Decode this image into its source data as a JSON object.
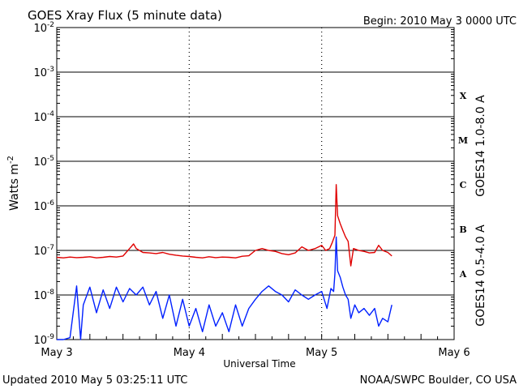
{
  "header": {
    "title": "GOES Xray Flux (5 minute data)",
    "begin": "Begin:  2010 May 3 0000 UTC"
  },
  "footer": {
    "updated": "Updated 2010 May  5 03:25:11 UTC",
    "credit": "NOAA/SWPC Boulder, CO USA"
  },
  "chart_data": {
    "type": "line",
    "title": "GOES Xray Flux (5 minute data)",
    "xlabel": "Universal Time",
    "ylabel": "Watts m",
    "ylabel_sup": "-2",
    "yscale": "log",
    "ylim": [
      1e-09,
      0.01
    ],
    "xlim_days": [
      0,
      3
    ],
    "x_ticks": [
      "May 3",
      "May 4",
      "May 5",
      "May 6"
    ],
    "y_ticks": [
      {
        "base": "10",
        "exp": "-2",
        "value": 0.01
      },
      {
        "base": "10",
        "exp": "-3",
        "value": 0.001
      },
      {
        "base": "10",
        "exp": "-4",
        "value": 0.0001
      },
      {
        "base": "10",
        "exp": "-5",
        "value": 1e-05
      },
      {
        "base": "10",
        "exp": "-6",
        "value": 1e-06
      },
      {
        "base": "10",
        "exp": "-7",
        "value": 1e-07
      },
      {
        "base": "10",
        "exp": "-8",
        "value": 1e-08
      },
      {
        "base": "10",
        "exp": "-9",
        "value": 1e-09
      }
    ],
    "flare_classes": [
      {
        "label": "X",
        "value": 0.0003
      },
      {
        "label": "M",
        "value": 3e-05
      },
      {
        "label": "C",
        "value": 3e-06
      },
      {
        "label": "B",
        "value": 3e-07
      },
      {
        "label": "A",
        "value": 3e-08
      }
    ],
    "grid": true,
    "series": [
      {
        "name": "GOES14 1.0-8.0 A",
        "color": "#e00000",
        "points": [
          [
            0.0,
            7e-08
          ],
          [
            0.05,
            6.8e-08
          ],
          [
            0.1,
            7.1e-08
          ],
          [
            0.15,
            6.9e-08
          ],
          [
            0.2,
            7e-08
          ],
          [
            0.25,
            7.2e-08
          ],
          [
            0.3,
            6.8e-08
          ],
          [
            0.35,
            7e-08
          ],
          [
            0.4,
            7.3e-08
          ],
          [
            0.45,
            7.1e-08
          ],
          [
            0.5,
            7.5e-08
          ],
          [
            0.55,
            1.1e-07
          ],
          [
            0.58,
            1.4e-07
          ],
          [
            0.6,
            1.1e-07
          ],
          [
            0.65,
            9e-08
          ],
          [
            0.7,
            8.8e-08
          ],
          [
            0.75,
            8.5e-08
          ],
          [
            0.8,
            9e-08
          ],
          [
            0.85,
            8.2e-08
          ],
          [
            0.9,
            7.8e-08
          ],
          [
            0.95,
            7.5e-08
          ],
          [
            1.0,
            7.3e-08
          ],
          [
            1.05,
            7e-08
          ],
          [
            1.1,
            6.8e-08
          ],
          [
            1.15,
            7.2e-08
          ],
          [
            1.2,
            6.9e-08
          ],
          [
            1.25,
            7.1e-08
          ],
          [
            1.3,
            7e-08
          ],
          [
            1.35,
            6.8e-08
          ],
          [
            1.4,
            7.4e-08
          ],
          [
            1.45,
            7.6e-08
          ],
          [
            1.5,
            1e-07
          ],
          [
            1.55,
            1.1e-07
          ],
          [
            1.6,
            1e-07
          ],
          [
            1.65,
            9.5e-08
          ],
          [
            1.7,
            8.5e-08
          ],
          [
            1.75,
            8e-08
          ],
          [
            1.8,
            8.8e-08
          ],
          [
            1.85,
            1.2e-07
          ],
          [
            1.9,
            1e-07
          ],
          [
            1.95,
            1.1e-07
          ],
          [
            2.0,
            1.3e-07
          ],
          [
            2.03,
            1e-07
          ],
          [
            2.06,
            1.1e-07
          ],
          [
            2.08,
            1.5e-07
          ],
          [
            2.1,
            2.2e-07
          ],
          [
            2.11,
            3e-06
          ],
          [
            2.12,
            6e-07
          ],
          [
            2.14,
            4e-07
          ],
          [
            2.16,
            2.8e-07
          ],
          [
            2.18,
            2e-07
          ],
          [
            2.2,
            1.6e-07
          ],
          [
            2.22,
            4.5e-08
          ],
          [
            2.24,
            1.1e-07
          ],
          [
            2.28,
            1e-07
          ],
          [
            2.32,
            9.5e-08
          ],
          [
            2.36,
            8.8e-08
          ],
          [
            2.4,
            9e-08
          ],
          [
            2.43,
            1.3e-07
          ],
          [
            2.46,
            1e-07
          ],
          [
            2.5,
            9e-08
          ],
          [
            2.53,
            7.5e-08
          ]
        ]
      },
      {
        "name": "GOES14 0.5-4.0 A",
        "color": "#0020ff",
        "points": [
          [
            0.0,
            1e-09
          ],
          [
            0.05,
            1e-09
          ],
          [
            0.1,
            1.1e-09
          ],
          [
            0.15,
            1.6e-08
          ],
          [
            0.18,
            1e-09
          ],
          [
            0.2,
            6e-09
          ],
          [
            0.25,
            1.5e-08
          ],
          [
            0.3,
            4e-09
          ],
          [
            0.35,
            1.3e-08
          ],
          [
            0.4,
            5e-09
          ],
          [
            0.45,
            1.5e-08
          ],
          [
            0.5,
            7e-09
          ],
          [
            0.55,
            1.4e-08
          ],
          [
            0.6,
            1e-08
          ],
          [
            0.65,
            1.5e-08
          ],
          [
            0.7,
            6e-09
          ],
          [
            0.75,
            1.2e-08
          ],
          [
            0.8,
            3e-09
          ],
          [
            0.85,
            1e-08
          ],
          [
            0.9,
            2e-09
          ],
          [
            0.95,
            8e-09
          ],
          [
            1.0,
            2e-09
          ],
          [
            1.05,
            5e-09
          ],
          [
            1.1,
            1.5e-09
          ],
          [
            1.15,
            6e-09
          ],
          [
            1.2,
            2e-09
          ],
          [
            1.25,
            4e-09
          ],
          [
            1.3,
            1.5e-09
          ],
          [
            1.35,
            6e-09
          ],
          [
            1.4,
            2e-09
          ],
          [
            1.45,
            5e-09
          ],
          [
            1.5,
            8e-09
          ],
          [
            1.55,
            1.2e-08
          ],
          [
            1.6,
            1.6e-08
          ],
          [
            1.65,
            1.2e-08
          ],
          [
            1.7,
            1e-08
          ],
          [
            1.75,
            7e-09
          ],
          [
            1.8,
            1.3e-08
          ],
          [
            1.85,
            1e-08
          ],
          [
            1.9,
            8e-09
          ],
          [
            1.95,
            1e-08
          ],
          [
            2.0,
            1.2e-08
          ],
          [
            2.04,
            5e-09
          ],
          [
            2.07,
            1.4e-08
          ],
          [
            2.09,
            1.2e-08
          ],
          [
            2.1,
            3e-08
          ],
          [
            2.11,
            2e-07
          ],
          [
            2.12,
            3.5e-08
          ],
          [
            2.14,
            2.5e-08
          ],
          [
            2.16,
            1.5e-08
          ],
          [
            2.18,
            1e-08
          ],
          [
            2.2,
            8e-09
          ],
          [
            2.22,
            3e-09
          ],
          [
            2.25,
            6e-09
          ],
          [
            2.28,
            4e-09
          ],
          [
            2.32,
            5e-09
          ],
          [
            2.36,
            3.5e-09
          ],
          [
            2.4,
            5e-09
          ],
          [
            2.43,
            2e-09
          ],
          [
            2.46,
            3e-09
          ],
          [
            2.5,
            2.5e-09
          ],
          [
            2.53,
            6e-09
          ]
        ]
      }
    ]
  }
}
